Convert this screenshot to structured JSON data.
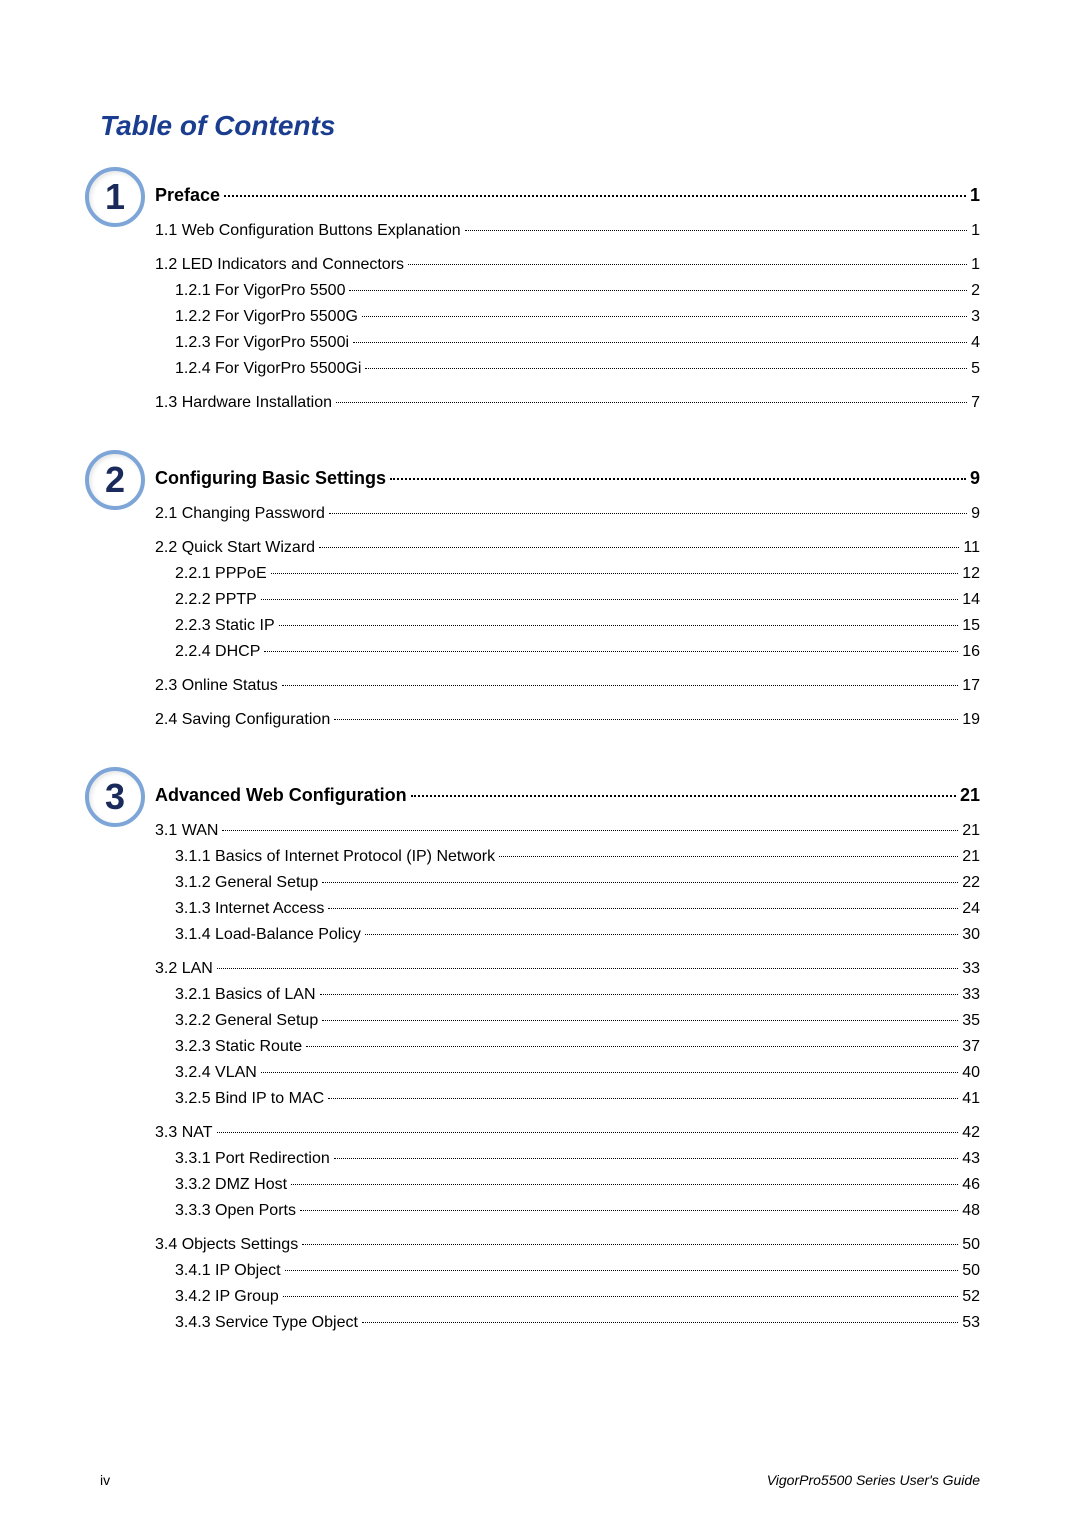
{
  "title": "Table of Contents",
  "sections": [
    {
      "badge": "1",
      "heading": {
        "text": "Preface",
        "page": "1"
      },
      "entries": [
        {
          "level": 1,
          "text": "1.1 Web Configuration Buttons Explanation",
          "page": "1"
        },
        {
          "level": 1,
          "text": "1.2 LED Indicators and Connectors",
          "page": "1"
        },
        {
          "level": 2,
          "text": "1.2.1 For VigorPro 5500",
          "page": "2"
        },
        {
          "level": 2,
          "text": "1.2.2 For VigorPro 5500G",
          "page": "3"
        },
        {
          "level": 2,
          "text": "1.2.3 For VigorPro 5500i",
          "page": "4"
        },
        {
          "level": 2,
          "text": "1.2.4 For VigorPro 5500Gi",
          "page": "5"
        },
        {
          "level": 1,
          "text": "1.3 Hardware Installation",
          "page": "7"
        }
      ]
    },
    {
      "badge": "2",
      "heading": {
        "text": "Configuring Basic Settings",
        "page": "9"
      },
      "entries": [
        {
          "level": 1,
          "text": "2.1 Changing Password",
          "page": "9"
        },
        {
          "level": 1,
          "text": "2.2 Quick Start Wizard",
          "page": "11"
        },
        {
          "level": 2,
          "text": "2.2.1 PPPoE",
          "page": "12"
        },
        {
          "level": 2,
          "text": "2.2.2 PPTP",
          "page": "14"
        },
        {
          "level": 2,
          "text": "2.2.3 Static IP",
          "page": "15"
        },
        {
          "level": 2,
          "text": "2.2.4 DHCP",
          "page": "16"
        },
        {
          "level": 1,
          "text": "2.3 Online Status",
          "page": "17"
        },
        {
          "level": 1,
          "text": "2.4 Saving Configuration",
          "page": "19"
        }
      ]
    },
    {
      "badge": "3",
      "heading": {
        "text": "Advanced Web Configuration",
        "page": "21"
      },
      "entries": [
        {
          "level": 1,
          "text": "3.1 WAN",
          "page": "21"
        },
        {
          "level": 2,
          "text": "3.1.1 Basics of Internet Protocol (IP) Network",
          "page": "21"
        },
        {
          "level": 2,
          "text": "3.1.2 General Setup",
          "page": "22"
        },
        {
          "level": 2,
          "text": "3.1.3 Internet Access",
          "page": "24"
        },
        {
          "level": 2,
          "text": "3.1.4 Load-Balance Policy",
          "page": "30"
        },
        {
          "level": 1,
          "text": "3.2 LAN",
          "page": "33"
        },
        {
          "level": 2,
          "text": "3.2.1 Basics of LAN",
          "page": "33"
        },
        {
          "level": 2,
          "text": "3.2.2 General Setup",
          "page": "35"
        },
        {
          "level": 2,
          "text": "3.2.3 Static Route",
          "page": "37"
        },
        {
          "level": 2,
          "text": "3.2.4 VLAN",
          "page": "40"
        },
        {
          "level": 2,
          "text": "3.2.5 Bind IP to MAC",
          "page": "41"
        },
        {
          "level": 1,
          "text": "3.3 NAT",
          "page": "42"
        },
        {
          "level": 2,
          "text": "3.3.1 Port Redirection",
          "page": "43"
        },
        {
          "level": 2,
          "text": "3.3.2 DMZ Host",
          "page": "46"
        },
        {
          "level": 2,
          "text": "3.3.3 Open Ports",
          "page": "48"
        },
        {
          "level": 1,
          "text": "3.4 Objects Settings",
          "page": "50"
        },
        {
          "level": 2,
          "text": "3.4.1 IP Object",
          "page": "50"
        },
        {
          "level": 2,
          "text": "3.4.2 IP Group",
          "page": "52"
        },
        {
          "level": 2,
          "text": "3.4.3 Service Type Object",
          "page": "53"
        }
      ]
    }
  ],
  "footer": {
    "left": "iv",
    "right": "VigorPro5500 Series User's Guide"
  }
}
